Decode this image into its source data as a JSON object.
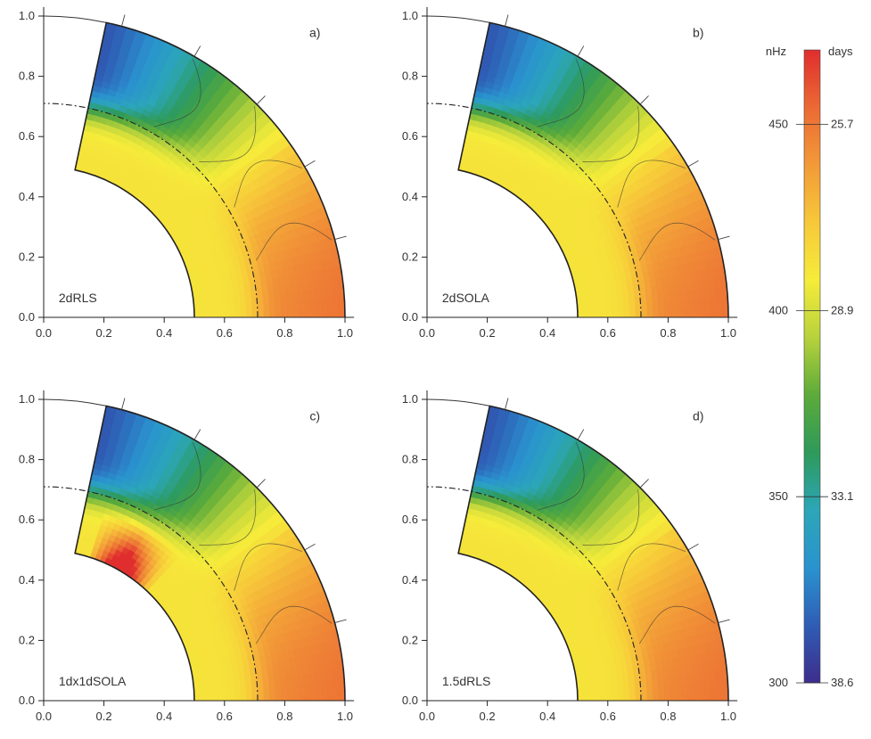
{
  "chart_data": {
    "type": "heatmap",
    "colorbar": {
      "units_left": "nHz",
      "units_right": "days",
      "ticks_left": [
        "450",
        "400",
        "350",
        "300"
      ],
      "ticks_right": [
        "25.7",
        "28.9",
        "33.1",
        "38.6"
      ],
      "tick_values_nhz": [
        450,
        400,
        350,
        300
      ],
      "range_nhz": [
        300,
        470
      ],
      "colormap": [
        "#3d2d8c",
        "#2f5db5",
        "#2a93cf",
        "#2ca6b8",
        "#2e9a5a",
        "#5cab3a",
        "#b7d23c",
        "#f6ec3a",
        "#f7c83a",
        "#f29a38",
        "#eb6a34",
        "#e02e2e"
      ]
    },
    "panels": [
      {
        "panel_label": "a)",
        "method": "2dRLS",
        "x_ticks": [
          "0.0",
          "0.2",
          "0.4",
          "0.6",
          "0.8",
          "1.0"
        ],
        "y_ticks": [
          "0.0",
          "0.2",
          "0.4",
          "0.6",
          "0.8",
          "1.0"
        ],
        "xlim": [
          0,
          1.0
        ],
        "ylim": [
          0,
          1.0
        ]
      },
      {
        "panel_label": "b)",
        "method": "2dSOLA",
        "x_ticks": [
          "0.0",
          "0.2",
          "0.4",
          "0.6",
          "0.8",
          "1.0"
        ],
        "y_ticks": [
          "0.0",
          "0.2",
          "0.4",
          "0.6",
          "0.8",
          "1.0"
        ],
        "xlim": [
          0,
          1.0
        ],
        "ylim": [
          0,
          1.0
        ]
      },
      {
        "panel_label": "c)",
        "method": "1dx1dSOLA",
        "x_ticks": [
          "0.0",
          "0.2",
          "0.4",
          "0.6",
          "0.8",
          "1.0"
        ],
        "y_ticks": [
          "0.0",
          "0.2",
          "0.4",
          "0.6",
          "0.8",
          "1.0"
        ],
        "xlim": [
          0,
          1.0
        ],
        "ylim": [
          0,
          1.0
        ]
      },
      {
        "panel_label": "d)",
        "method": "1.5dRLS",
        "x_ticks": [
          "0.0",
          "0.2",
          "0.4",
          "0.6",
          "0.8",
          "1.0"
        ],
        "y_ticks": [
          "0.0",
          "0.2",
          "0.4",
          "0.6",
          "0.8",
          "1.0"
        ],
        "xlim": [
          0,
          1.0
        ],
        "ylim": [
          0,
          1.0
        ]
      }
    ],
    "geometry": {
      "inner_radius": 0.5,
      "outer_radius": 1.0,
      "tachocline_radius": 0.71,
      "max_latitude_deg": 78
    }
  }
}
